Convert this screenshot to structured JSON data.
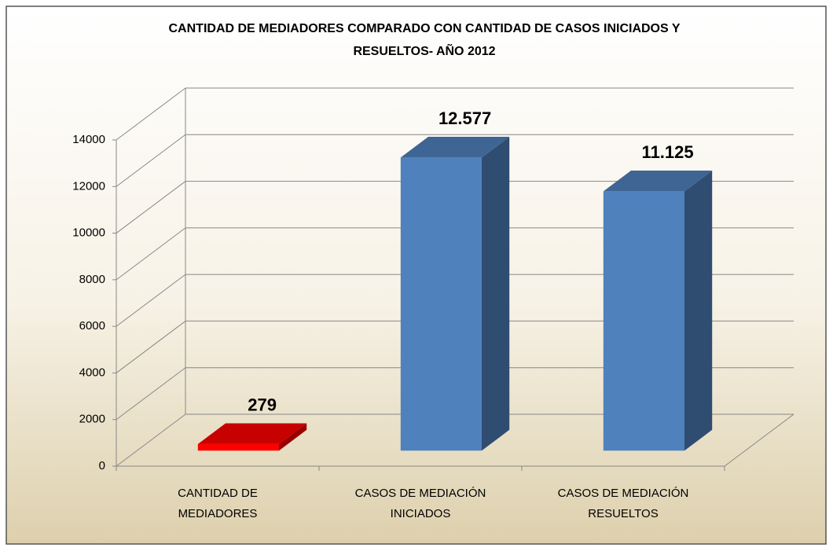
{
  "chart_data": {
    "type": "bar3d",
    "title": "CANTIDAD DE MEDIADORES COMPARADO CON CANTIDAD DE CASOS INICIADOS Y\nRESUELTOS- AÑO 2012",
    "categories": [
      "CANTIDAD DE\nMEDIADORES",
      "CASOS DE MEDIACIÓN\nINICIADOS",
      "CASOS DE MEDIACIÓN\nRESUELTOS"
    ],
    "values": [
      279,
      12577,
      11125
    ],
    "value_labels": [
      "279",
      "12.577",
      "11.125"
    ],
    "colors": [
      "#ff0000",
      "#4f81bd",
      "#4f81bd"
    ],
    "ylim": [
      0,
      14000
    ],
    "yticks": [
      0,
      2000,
      4000,
      6000,
      8000,
      10000,
      12000,
      14000
    ],
    "grid": true
  }
}
